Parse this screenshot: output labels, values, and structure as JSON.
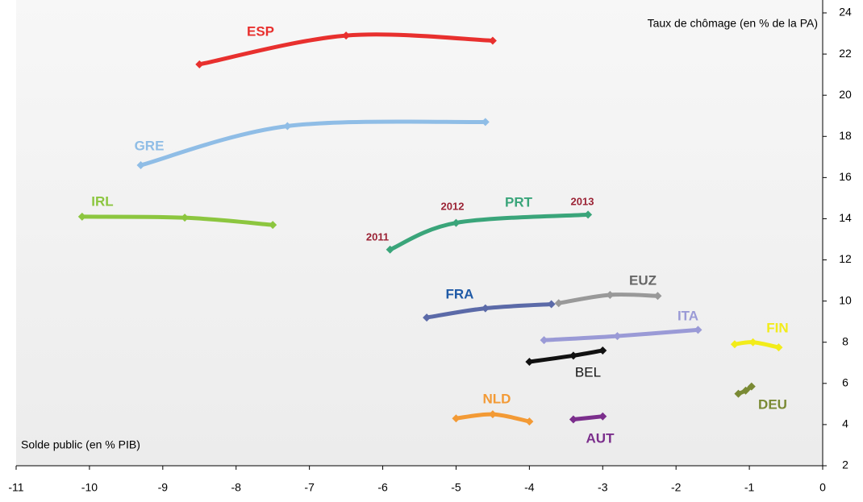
{
  "chart_data": {
    "type": "line",
    "x_label": "Solde public (en % PIB)",
    "y_label": "Taux de chômage (en % de la PA)",
    "xlim": [
      -11,
      0
    ],
    "xticks": [
      -11,
      -10,
      -9,
      -8,
      -7,
      -6,
      -5,
      -4,
      -3,
      -2,
      -1,
      0
    ],
    "ylim": [
      2,
      24
    ],
    "yticks": [
      2,
      4,
      6,
      8,
      10,
      12,
      14,
      16,
      18,
      20,
      22,
      24
    ],
    "annotations": [
      "2011",
      "2012",
      "2013"
    ],
    "annotation_color": "#9b2335",
    "series": [
      {
        "name": "ESP",
        "color": "#e8302e",
        "x": [
          -8.5,
          -6.5,
          -4.5
        ],
        "values": [
          21.5,
          22.9,
          22.65
        ]
      },
      {
        "name": "GRE",
        "color": "#8fbde6",
        "x": [
          -9.3,
          -7.3,
          -4.6
        ],
        "values": [
          16.6,
          18.5,
          18.7
        ]
      },
      {
        "name": "IRL",
        "color": "#8cc63f",
        "x": [
          -10.1,
          -8.7,
          -7.5
        ],
        "values": [
          14.1,
          14.05,
          13.7
        ]
      },
      {
        "name": "PRT",
        "color": "#3aa57a",
        "x": [
          -5.9,
          -5,
          -3.2
        ],
        "values": [
          12.5,
          13.8,
          14.2
        ]
      },
      {
        "name": "FRA",
        "color": "#5b6aa8",
        "label_color": "#1f5aa6",
        "x": [
          -5.4,
          -4.6,
          -3.7
        ],
        "values": [
          9.2,
          9.65,
          9.85
        ]
      },
      {
        "name": "EUZ",
        "color": "#999999",
        "label_color": "#666666",
        "x": [
          -3.6,
          -2.9,
          -2.25
        ],
        "values": [
          9.9,
          10.3,
          10.25
        ]
      },
      {
        "name": "ITA",
        "color": "#9a9ad6",
        "x": [
          -3.8,
          -2.8,
          -1.7
        ],
        "values": [
          8.1,
          8.3,
          8.6
        ]
      },
      {
        "name": "FIN",
        "color": "#f2ec1a",
        "x": [
          -1.2,
          -0.95,
          -0.6
        ],
        "values": [
          7.9,
          8.0,
          7.75
        ]
      },
      {
        "name": "BEL",
        "color": "#111111",
        "x": [
          -4,
          -3.4,
          -3
        ],
        "values": [
          7.05,
          7.35,
          7.6
        ]
      },
      {
        "name": "DEU",
        "color": "#7a8a34",
        "x": [
          -1.15,
          -1.05,
          -0.97
        ],
        "values": [
          5.5,
          5.65,
          5.85
        ]
      },
      {
        "name": "NLD",
        "color": "#f39a35",
        "x": [
          -5,
          -4.5,
          -4
        ],
        "values": [
          4.3,
          4.5,
          4.15
        ]
      },
      {
        "name": "AUT",
        "color": "#7b2e8c",
        "x": [
          -3.4,
          -3
        ],
        "values": [
          4.25,
          4.4
        ]
      }
    ]
  }
}
